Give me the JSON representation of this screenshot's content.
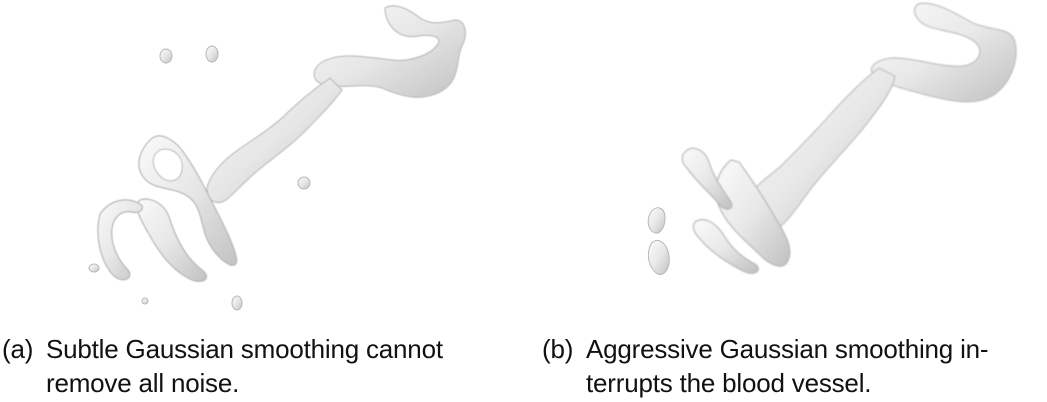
{
  "figure": {
    "panels": [
      {
        "tag": "(a)",
        "caption_line1": "Subtle Gaussian smoothing cannot",
        "caption_line2": "remove all noise.",
        "image_alt": "blood-vessel-surface-render-with-noise"
      },
      {
        "tag": "(b)",
        "caption_line1": "Aggressive Gaussian smoothing in-",
        "caption_line2": "terrupts the blood vessel.",
        "image_alt": "blood-vessel-surface-render-interrupted"
      }
    ],
    "colors": {
      "vessel_fill": "#ececec",
      "vessel_shade": "#c4c4c4",
      "vessel_edge": "#b0b0b0",
      "highlight": "#ffffff"
    }
  }
}
